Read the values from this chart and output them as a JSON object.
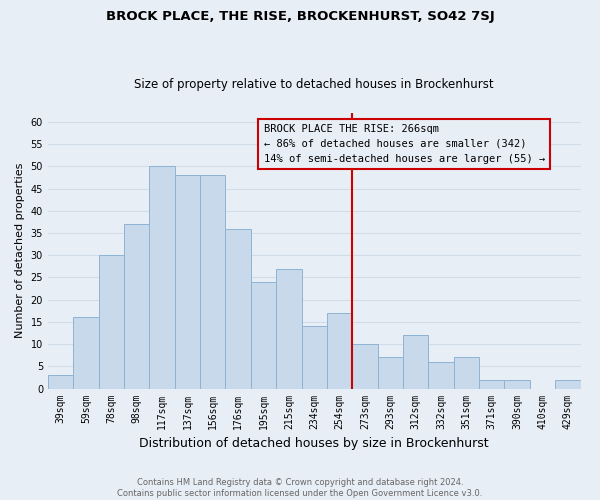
{
  "title": "BROCK PLACE, THE RISE, BROCKENHURST, SO42 7SJ",
  "subtitle": "Size of property relative to detached houses in Brockenhurst",
  "xlabel": "Distribution of detached houses by size in Brockenhurst",
  "ylabel": "Number of detached properties",
  "footnote1": "Contains HM Land Registry data © Crown copyright and database right 2024.",
  "footnote2": "Contains public sector information licensed under the Open Government Licence v3.0.",
  "categories": [
    "39sqm",
    "59sqm",
    "78sqm",
    "98sqm",
    "117sqm",
    "137sqm",
    "156sqm",
    "176sqm",
    "195sqm",
    "215sqm",
    "234sqm",
    "254sqm",
    "273sqm",
    "293sqm",
    "312sqm",
    "332sqm",
    "351sqm",
    "371sqm",
    "390sqm",
    "410sqm",
    "429sqm"
  ],
  "values": [
    3,
    16,
    30,
    37,
    50,
    48,
    48,
    36,
    24,
    27,
    14,
    17,
    10,
    7,
    12,
    6,
    7,
    2,
    2,
    0,
    2
  ],
  "bar_color": "#c8d9ec",
  "bar_edge_color": "#8eb4d4",
  "grid_color": "#d0dce8",
  "background_color": "#e8eef5",
  "annotation_text_line1": "BROCK PLACE THE RISE: 266sqm",
  "annotation_text_line2": "← 86% of detached houses are smaller (342)",
  "annotation_text_line3": "14% of semi-detached houses are larger (55) →",
  "vline_color": "#cc0000",
  "vline_x_index": 12,
  "ylim": [
    0,
    62
  ],
  "yticks": [
    0,
    5,
    10,
    15,
    20,
    25,
    30,
    35,
    40,
    45,
    50,
    55,
    60
  ],
  "title_fontsize": 9.5,
  "subtitle_fontsize": 8.5,
  "ylabel_fontsize": 8,
  "xlabel_fontsize": 9,
  "tick_fontsize": 7,
  "footnote_fontsize": 6,
  "footnote_color": "#666666"
}
